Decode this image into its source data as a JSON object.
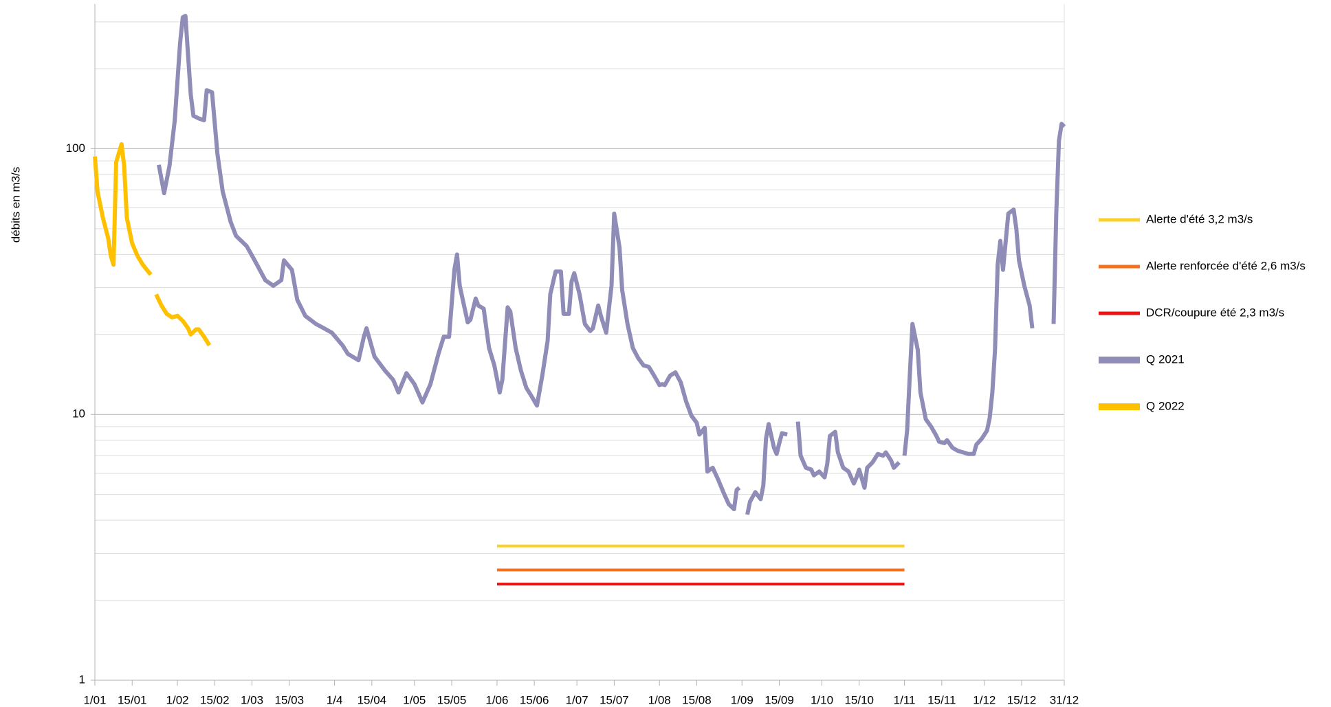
{
  "chart_data": {
    "type": "line",
    "log_y": true,
    "grid": true,
    "y_label": "débits en m3/s",
    "xlim": [
      1,
      365
    ],
    "ylim": [
      1,
      350
    ],
    "yticks": [
      1,
      10,
      100
    ],
    "y_minor_grid": [
      2,
      3,
      4,
      5,
      6,
      7,
      8,
      9,
      20,
      30,
      40,
      50,
      60,
      70,
      80,
      90,
      200,
      300
    ],
    "xticks": [
      {
        "value": 1,
        "label": "1/01"
      },
      {
        "value": 15,
        "label": "15/01"
      },
      {
        "value": 32,
        "label": "1/02"
      },
      {
        "value": 46,
        "label": "15/02"
      },
      {
        "value": 60,
        "label": "1/03"
      },
      {
        "value": 74,
        "label": "15/03"
      },
      {
        "value": 91,
        "label": "1/4"
      },
      {
        "value": 105,
        "label": "15/04"
      },
      {
        "value": 121,
        "label": "1/05"
      },
      {
        "value": 135,
        "label": "15/05"
      },
      {
        "value": 152,
        "label": "1/06"
      },
      {
        "value": 166,
        "label": "15/06"
      },
      {
        "value": 182,
        "label": "1/07"
      },
      {
        "value": 196,
        "label": "15/07"
      },
      {
        "value": 213,
        "label": "1/08"
      },
      {
        "value": 227,
        "label": "15/08"
      },
      {
        "value": 244,
        "label": "1/09"
      },
      {
        "value": 258,
        "label": "15/09"
      },
      {
        "value": 274,
        "label": "1/10"
      },
      {
        "value": 288,
        "label": "15/10"
      },
      {
        "value": 305,
        "label": "1/11"
      },
      {
        "value": 319,
        "label": "15/11"
      },
      {
        "value": 335,
        "label": "1/12"
      },
      {
        "value": 349,
        "label": "15/12"
      },
      {
        "value": 365,
        "label": "31/12"
      }
    ],
    "series": [
      {
        "name": "Alerte d'été 3,2 m3/s",
        "color": "#f9d12a",
        "x": [
          152,
          305
        ],
        "values": [
          3.2,
          3.2
        ]
      },
      {
        "name": "Alerte renforcée d'été 2,6 m3/s",
        "color": "#f4711f",
        "x": [
          152,
          305
        ],
        "values": [
          2.6,
          2.6
        ]
      },
      {
        "name": "DCR/coupure été 2,3 m3/s",
        "color": "#ee1111",
        "x": [
          152,
          305
        ],
        "values": [
          2.3,
          2.3
        ]
      },
      {
        "name": "Q 2021",
        "color": "#8f8cb7",
        "x": [
          25,
          27,
          29,
          31,
          33,
          34,
          35,
          37,
          38,
          40,
          42,
          43,
          45,
          47,
          49,
          52,
          54,
          58,
          61,
          65,
          68,
          71,
          72,
          75,
          77,
          80,
          84,
          87,
          90,
          94,
          96,
          100,
          102,
          103,
          106,
          110,
          113,
          115,
          118,
          121,
          124,
          127,
          130,
          132,
          134,
          136,
          137,
          138,
          141,
          142,
          144,
          145,
          147,
          149,
          151,
          153,
          154,
          156,
          157,
          159,
          161,
          163,
          165,
          167,
          169,
          171,
          172,
          174,
          176,
          177,
          179,
          180,
          181,
          183,
          185,
          187,
          188,
          190,
          191,
          193,
          195,
          196,
          198,
          199,
          201,
          203,
          205,
          207,
          209,
          211,
          213,
          214,
          215,
          217,
          219,
          221,
          223,
          225,
          227,
          228,
          230,
          231,
          233,
          235,
          237,
          239,
          241,
          242,
          243,
          244,
          246,
          247,
          249,
          251,
          252,
          253,
          254,
          256,
          257,
          258,
          259,
          261,
          263,
          265,
          266,
          268,
          270,
          271,
          273,
          275,
          276,
          277,
          279,
          280,
          282,
          284,
          286,
          287,
          288,
          290,
          291,
          293,
          295,
          297,
          298,
          300,
          301,
          303,
          304,
          305,
          306,
          307,
          308,
          310,
          311,
          313,
          315,
          317,
          318,
          320,
          321,
          323,
          325,
          327,
          329,
          331,
          332,
          334,
          336,
          337,
          338,
          339,
          340,
          341,
          342,
          344,
          346,
          347,
          348,
          350,
          352,
          353,
          357,
          361,
          362,
          363,
          364,
          365
        ],
        "values": [
          87,
          68,
          86,
          128,
          250,
          312,
          316,
          160,
          133,
          130,
          128,
          166,
          163,
          96,
          69,
          53,
          47,
          43,
          38,
          32,
          30.5,
          32,
          38,
          35,
          27,
          23.5,
          21.9,
          21.1,
          20.3,
          18.2,
          16.9,
          16,
          19.6,
          21.1,
          16.5,
          14.6,
          13.5,
          12.1,
          14.3,
          13,
          11.1,
          13,
          16.9,
          19.6,
          19.6,
          35,
          40,
          30.5,
          22.2,
          22.7,
          27.3,
          25.7,
          25,
          17.8,
          15.3,
          12.1,
          13.5,
          25.3,
          24.4,
          17.8,
          14.6,
          12.6,
          11.7,
          10.8,
          14,
          18.9,
          28.3,
          34.5,
          34.5,
          23.9,
          23.9,
          31.6,
          34,
          28.3,
          21.9,
          20.6,
          21.1,
          25.7,
          23.5,
          20.3,
          30.5,
          57,
          42.5,
          29.4,
          21.9,
          17.8,
          16.3,
          15.3,
          15.1,
          14,
          12.9,
          13,
          12.9,
          14,
          14.4,
          13.2,
          11.2,
          9.9,
          9.3,
          8.4,
          8.9,
          6.1,
          6.3,
          5.7,
          5.1,
          4.6,
          4.4,
          5.2,
          5.3,
          null,
          4.2,
          4.7,
          5.1,
          4.8,
          5.4,
          8.1,
          9.2,
          7.5,
          7.1,
          7.8,
          8.5,
          8.4,
          null,
          9.4,
          7.0,
          6.3,
          6.2,
          5.9,
          6.1,
          5.8,
          6.5,
          8.3,
          8.6,
          7.2,
          6.3,
          6.1,
          5.5,
          5.8,
          6.2,
          5.3,
          6.3,
          6.6,
          7.1,
          7.0,
          7.2,
          6.7,
          6.3,
          6.6,
          null,
          7.0,
          8.7,
          14,
          21.9,
          17.5,
          12.1,
          9.6,
          9.0,
          8.3,
          7.9,
          7.8,
          8.0,
          7.5,
          7.3,
          7.2,
          7.1,
          7.1,
          7.7,
          8.1,
          8.7,
          9.7,
          12.1,
          17.5,
          36.6,
          45,
          35,
          57,
          59,
          50,
          38,
          30.5,
          25.7,
          21.1,
          null,
          21.9,
          57,
          107,
          124,
          121
        ]
      },
      {
        "name": "Q 2022",
        "color": "#ffc000",
        "x": [
          1,
          2,
          4,
          6,
          7,
          8,
          9,
          11,
          12,
          13,
          15,
          17,
          19,
          21,
          22,
          23,
          24,
          26,
          28,
          30,
          32,
          34,
          36,
          37,
          39,
          40,
          42,
          44
        ],
        "values": [
          93.5,
          69,
          55,
          46,
          39.5,
          36.6,
          89,
          104,
          86,
          55,
          44,
          39.5,
          36.6,
          34.5,
          33.6,
          null,
          28.3,
          25.7,
          23.9,
          23.2,
          23.5,
          22.5,
          21.1,
          20,
          20.9,
          20.9,
          19.6,
          18.2
        ]
      }
    ]
  }
}
